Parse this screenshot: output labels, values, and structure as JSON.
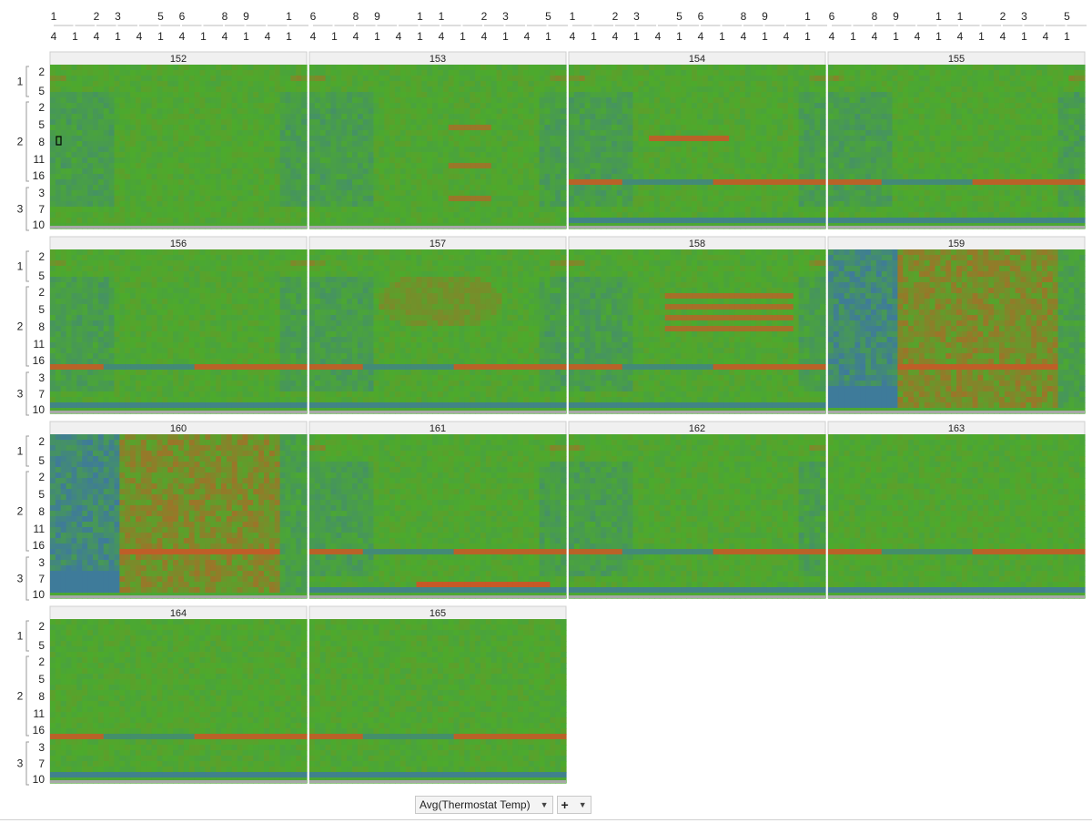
{
  "chart_data": {
    "type": "heatmap",
    "measure_label": "Avg(Thermostat Temp)",
    "colors": {
      "cold": "#3b6fb5",
      "neutral": "#4caa2c",
      "hot": "#cc5527"
    },
    "column_ticks": [
      {
        "top": "1",
        "bottom": "4"
      },
      {
        "top": "",
        "bottom": "1"
      },
      {
        "top": "2",
        "bottom": "4"
      },
      {
        "top": "3",
        "bottom": "1"
      },
      {
        "top": "",
        "bottom": "4"
      },
      {
        "top": "5",
        "bottom": "1"
      },
      {
        "top": "6",
        "bottom": "4"
      },
      {
        "top": "",
        "bottom": "1"
      },
      {
        "top": "8",
        "bottom": "4"
      },
      {
        "top": "9",
        "bottom": "1"
      },
      {
        "top": "",
        "bottom": "4"
      },
      {
        "top": "1",
        "bottom": "1"
      },
      {
        "top": "1",
        "bottom": "4"
      },
      {
        "top": "",
        "bottom": "1"
      },
      {
        "top": "2",
        "bottom": "4"
      },
      {
        "top": "3",
        "bottom": "1"
      },
      {
        "top": "",
        "bottom": "4"
      },
      {
        "top": "5",
        "bottom": "1"
      },
      {
        "top": "6",
        "bottom": "4"
      },
      {
        "top": "",
        "bottom": "1"
      },
      {
        "top": "8",
        "bottom": "4"
      },
      {
        "top": "9",
        "bottom": "1"
      },
      {
        "top": "",
        "bottom": "4"
      },
      {
        "top": "1",
        "bottom": "1"
      }
    ],
    "row_groups": [
      {
        "label": "1",
        "ticks": [
          "2",
          "5"
        ]
      },
      {
        "label": "2",
        "ticks": [
          "2",
          "5",
          "8",
          "11",
          "16"
        ]
      },
      {
        "label": "3",
        "ticks": [
          "3",
          "7",
          "10"
        ]
      }
    ],
    "panels": [
      {
        "title": "152",
        "pattern": "mild",
        "seed": 1,
        "hot_rows": [],
        "cold_rows": [],
        "extra": ""
      },
      {
        "title": "153",
        "pattern": "mild",
        "seed": 2,
        "hot_rows": [],
        "cold_rows": [],
        "extra": "red-spots"
      },
      {
        "title": "154",
        "pattern": "band",
        "seed": 3,
        "hot_rows": [],
        "cold_rows": [],
        "extra": "red-streak"
      },
      {
        "title": "155",
        "pattern": "band",
        "seed": 4,
        "hot_rows": [],
        "cold_rows": [],
        "extra": ""
      },
      {
        "title": "156",
        "pattern": "band",
        "seed": 5,
        "hot_rows": [],
        "cold_rows": [],
        "extra": ""
      },
      {
        "title": "157",
        "pattern": "band",
        "seed": 6,
        "hot_rows": [],
        "cold_rows": [],
        "extra": "warm-blob"
      },
      {
        "title": "158",
        "pattern": "band",
        "seed": 7,
        "hot_rows": [],
        "cold_rows": [],
        "extra": "red-lines"
      },
      {
        "title": "159",
        "pattern": "hot",
        "seed": 8,
        "hot_rows": [],
        "cold_rows": [],
        "extra": ""
      },
      {
        "title": "160",
        "pattern": "hot",
        "seed": 9,
        "hot_rows": [],
        "cold_rows": [],
        "extra": ""
      },
      {
        "title": "161",
        "pattern": "band",
        "seed": 10,
        "hot_rows": [],
        "cold_rows": [],
        "extra": "red-bar"
      },
      {
        "title": "162",
        "pattern": "band",
        "seed": 11,
        "hot_rows": [],
        "cold_rows": [],
        "extra": ""
      },
      {
        "title": "163",
        "pattern": "plain",
        "seed": 12,
        "hot_rows": [],
        "cold_rows": [],
        "extra": ""
      },
      {
        "title": "164",
        "pattern": "plain",
        "seed": 13,
        "hot_rows": [],
        "cold_rows": [],
        "extra": ""
      },
      {
        "title": "165",
        "pattern": "plain",
        "seed": 14,
        "hot_rows": [],
        "cold_rows": [],
        "extra": ""
      }
    ]
  },
  "controls": {
    "measure_button": "Avg(Thermostat Temp)",
    "measure_dropdown_icon": "caret-down-icon",
    "add_button": "+",
    "add_dropdown_icon": "caret-down-icon"
  }
}
